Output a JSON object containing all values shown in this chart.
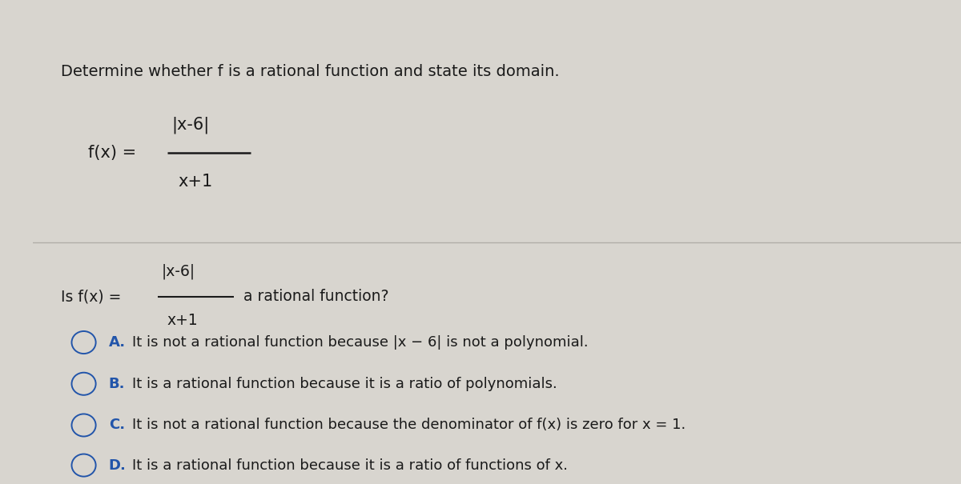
{
  "bg_color": "#d8d5cf",
  "top_bar_color": "#7a1020",
  "left_bar_color": "#1a1a1a",
  "content_bg": "#e8e6e0",
  "text_color": "#1a1a1a",
  "link_color": "#2255aa",
  "title": "Determine whether f is a rational function and state its domain.",
  "title_fontsize": 14,
  "fx_numerator": "|x-6|",
  "fx_denominator": "x+1",
  "question_numerator": "|x-6|",
  "question_denominator": "x+1",
  "options": [
    {
      "letter": "A.",
      "text": "It is not a rational function because |x − 6| is not a polynomial."
    },
    {
      "letter": "B.",
      "text": "It is a rational function because it is a ratio of polynomials."
    },
    {
      "letter": "C.",
      "text": "It is not a rational function because the denominator of f(x) is zero for x = 1."
    },
    {
      "letter": "D.",
      "text": "It is a rational function because it is a ratio of functions of x."
    }
  ],
  "circle_color": "#2255aa",
  "option_fontsize": 13,
  "divider_color": "#b0ada8",
  "left_bar_width": 0.034
}
